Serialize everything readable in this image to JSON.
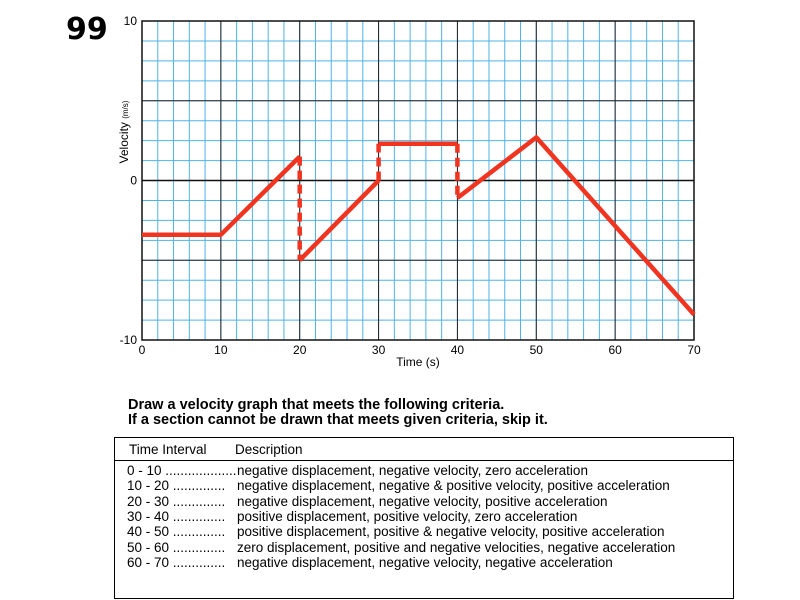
{
  "page_number": "99",
  "chart_data": {
    "type": "line",
    "title": "",
    "xlabel": "Time (s)",
    "ylabel": "Velocity",
    "ylabel_unit": "(m/s)",
    "xlim": [
      0,
      70
    ],
    "ylim": [
      -10,
      10
    ],
    "x_ticks": [
      0,
      10,
      20,
      30,
      40,
      50,
      60,
      70
    ],
    "y_tick_labels": [
      "10",
      "0",
      "-10"
    ],
    "y_ticks": [
      10,
      0,
      -10
    ],
    "grid": true,
    "series": [
      {
        "name": "velocity",
        "color": "#f0341f",
        "segments": [
          {
            "style": "solid",
            "points": [
              [
                0,
                -3.4
              ],
              [
                10,
                -3.4
              ],
              [
                20,
                1.5
              ]
            ]
          },
          {
            "style": "dashed",
            "points": [
              [
                20,
                1.5
              ],
              [
                20,
                -5.0
              ]
            ]
          },
          {
            "style": "solid",
            "points": [
              [
                20,
                -5.0
              ],
              [
                30,
                0
              ]
            ]
          },
          {
            "style": "dashed",
            "points": [
              [
                30,
                0
              ],
              [
                30,
                2.3
              ]
            ]
          },
          {
            "style": "solid",
            "points": [
              [
                30,
                2.3
              ],
              [
                40,
                2.3
              ]
            ]
          },
          {
            "style": "dashed",
            "points": [
              [
                40,
                2.3
              ],
              [
                40,
                -1.1
              ]
            ]
          },
          {
            "style": "solid",
            "points": [
              [
                40,
                -1.1
              ],
              [
                50,
                2.7
              ],
              [
                70,
                -8.4
              ]
            ]
          }
        ]
      }
    ]
  },
  "instructions": {
    "line1": "Draw a velocity graph that meets the following criteria.",
    "line2": "If a section cannot be drawn that meets given criteria, skip it."
  },
  "table": {
    "headers": {
      "interval": "Time Interval",
      "description": "Description"
    },
    "rows": [
      {
        "interval": "0 - 10 ......................",
        "description": "negative displacement, negative velocity, zero acceleration"
      },
      {
        "interval": "10 - 20 ..............",
        "description": "negative displacement, negative & positive velocity, positive acceleration"
      },
      {
        "interval": "20 - 30 ..............",
        "description": "negative displacement, negative velocity, positive acceleration"
      },
      {
        "interval": "30 - 40 ..............",
        "description": "positive displacement, positive velocity, zero acceleration"
      },
      {
        "interval": "40 - 50 ..............",
        "description": "positive displacement, positive & negative velocity, positive acceleration"
      },
      {
        "interval": "50 - 60 ..............",
        "description": "zero displacement, positive and negative velocities, negative acceleration"
      },
      {
        "interval": "60 - 70 ..............",
        "description": "negative displacement, negative velocity, negative acceleration"
      }
    ]
  }
}
